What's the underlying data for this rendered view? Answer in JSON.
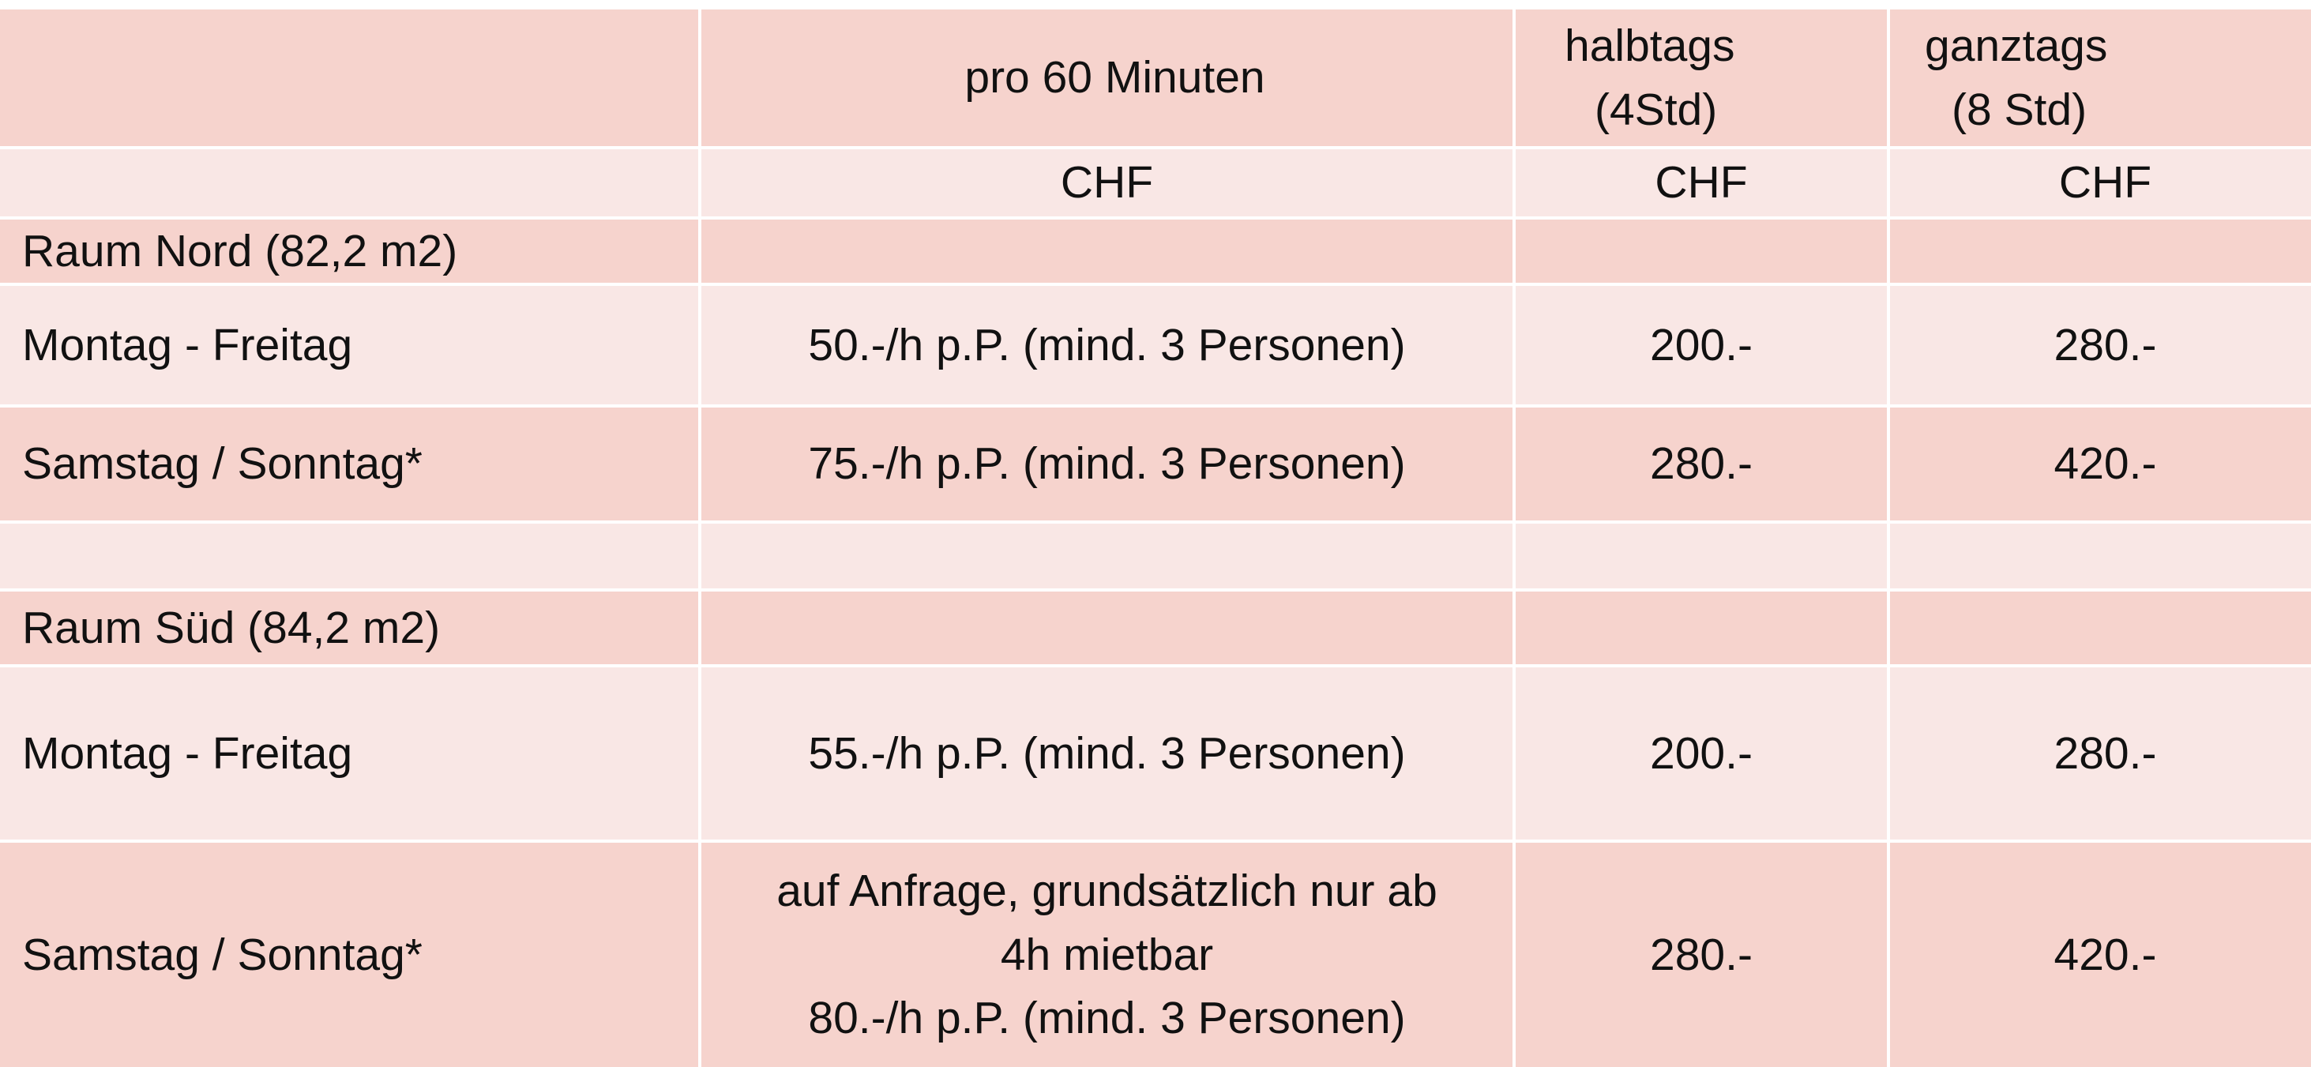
{
  "header": {
    "col_empty": "",
    "pro_60": "pro 60 Minuten",
    "halbtags_line1": "halbtags",
    "halbtags_line2": "(4Std)",
    "ganztags_line1": "ganztags",
    "ganztags_line2": "(8 Std)"
  },
  "currency_row": {
    "c1": "",
    "c2": "CHF",
    "c3": "CHF",
    "c4": "CHF"
  },
  "sections": [
    {
      "title": "Raum Nord (82,2 m2)",
      "rows": [
        {
          "label": "Montag - Freitag",
          "per_hour": "50.-/h p.P. (mind. 3 Personen)",
          "halbtags": "200.-",
          "ganztags": "280.-"
        },
        {
          "label": "Samstag / Sonntag*",
          "per_hour": "75.-/h p.P. (mind. 3 Personen)",
          "halbtags": "280.-",
          "ganztags": "420.-"
        }
      ]
    },
    {
      "title": "Raum Süd (84,2 m2)",
      "rows": [
        {
          "label": "Montag - Freitag",
          "per_hour": "55.-/h p.P. (mind. 3 Personen)",
          "halbtags": "200.-",
          "ganztags": "280.-"
        },
        {
          "label": "Samstag / Sonntag*",
          "per_hour_lines": [
            "auf Anfrage, grundsätzlich nur ab",
            "4h mietbar",
            "80.-/h p.P. (mind. 3 Personen)"
          ],
          "halbtags": "280.-",
          "ganztags": "420.-"
        }
      ]
    }
  ],
  "colors": {
    "row_dark": "#f6d3cd",
    "row_light": "#f9e7e5",
    "grid_lines": "#ffffff"
  }
}
